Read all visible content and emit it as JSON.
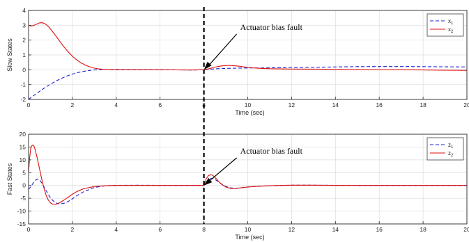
{
  "colors": {
    "series1": "#1f1fd6",
    "series2": "#e01010",
    "grid": "#dcdcdc",
    "fault_line": "#000000"
  },
  "fault_time": 8,
  "chart_data": [
    {
      "type": "line",
      "xlabel": "Time (sec)",
      "ylabel": "Slow States",
      "xlim": [
        0,
        20
      ],
      "ylim": [
        -2,
        4
      ],
      "xticks": [
        "0",
        "2",
        "4",
        "6",
        "8",
        "10",
        "12",
        "14",
        "16",
        "18",
        "20"
      ],
      "yticks": [
        "-2",
        "-1",
        "0",
        "1",
        "2",
        "3",
        "4"
      ],
      "grid": true,
      "legend_position": "top-right",
      "annotation": {
        "text": "Actuator bias fault",
        "x": 8,
        "y": 0
      },
      "series": [
        {
          "name": "x",
          "subscript": "1",
          "style": "dashed",
          "color": "#1f1fd6",
          "x": [
            0,
            0.25,
            0.5,
            0.75,
            1,
            1.25,
            1.5,
            1.75,
            2,
            2.25,
            2.5,
            2.75,
            3,
            3.25,
            3.5,
            4,
            5,
            6,
            7,
            7.5,
            8,
            8.2,
            8.4,
            8.6,
            8.8,
            9,
            9.5,
            10,
            11,
            12,
            13,
            14,
            15,
            16,
            17,
            18,
            19,
            20
          ],
          "y": [
            -2,
            -1.72,
            -1.46,
            -1.2,
            -0.97,
            -0.76,
            -0.58,
            -0.42,
            -0.29,
            -0.19,
            -0.11,
            -0.05,
            -0.01,
            0.0,
            0.02,
            0.02,
            0.01,
            0.0,
            -0.01,
            -0.02,
            0,
            0.03,
            0.05,
            0.07,
            0.08,
            0.09,
            0.11,
            0.12,
            0.13,
            0.15,
            0.17,
            0.19,
            0.21,
            0.22,
            0.22,
            0.21,
            0.2,
            0.19
          ]
        },
        {
          "name": "x",
          "subscript": "2",
          "style": "solid",
          "color": "#e01010",
          "x": [
            0,
            0.1,
            0.2,
            0.3,
            0.4,
            0.5,
            0.6,
            0.7,
            0.8,
            0.9,
            1,
            1.2,
            1.4,
            1.6,
            1.8,
            2,
            2.2,
            2.4,
            2.6,
            2.8,
            3,
            3.2,
            3.5,
            4,
            5,
            6,
            7,
            7.5,
            8,
            8.2,
            8.4,
            8.6,
            8.8,
            9,
            9.2,
            9.4,
            9.6,
            9.8,
            10,
            10.5,
            11,
            12,
            13,
            14,
            15,
            16,
            17,
            18,
            19,
            20
          ],
          "y": [
            3,
            2.95,
            2.97,
            3.03,
            3.1,
            3.16,
            3.17,
            3.14,
            3.05,
            2.92,
            2.75,
            2.37,
            1.97,
            1.57,
            1.22,
            0.91,
            0.66,
            0.46,
            0.31,
            0.19,
            0.11,
            0.06,
            0.02,
            0.0,
            0.0,
            0.0,
            -0.01,
            -0.01,
            0,
            0.06,
            0.14,
            0.21,
            0.26,
            0.29,
            0.29,
            0.27,
            0.24,
            0.2,
            0.16,
            0.1,
            0.07,
            0.05,
            0.04,
            0.03,
            0.02,
            0.01,
            0.0,
            -0.01,
            -0.03,
            -0.04
          ]
        }
      ]
    },
    {
      "type": "line",
      "xlabel": "Time (sec)",
      "ylabel": "Fast States",
      "xlim": [
        0,
        20
      ],
      "ylim": [
        -15,
        20
      ],
      "xticks": [
        "0",
        "2",
        "4",
        "6",
        "8",
        "10",
        "12",
        "14",
        "16",
        "18",
        "20"
      ],
      "yticks": [
        "-15",
        "-10",
        "-5",
        "0",
        "5",
        "10",
        "15",
        "20"
      ],
      "grid": true,
      "legend_position": "top-right",
      "annotation": {
        "text": "Actuator bias fault",
        "x": 8,
        "y": 0
      },
      "series": [
        {
          "name": "z",
          "subscript": "1",
          "style": "dashed",
          "color": "#1f1fd6",
          "x": [
            0,
            0.1,
            0.2,
            0.3,
            0.4,
            0.5,
            0.6,
            0.7,
            0.8,
            0.9,
            1,
            1.1,
            1.2,
            1.3,
            1.4,
            1.6,
            1.8,
            2,
            2.2,
            2.5,
            3,
            3.5,
            4,
            5,
            6,
            7,
            7.8,
            8,
            8.1,
            8.2,
            8.3,
            8.4,
            8.5,
            8.6,
            8.7,
            8.8,
            9,
            9.2,
            9.4,
            9.6,
            9.8,
            10,
            10.5,
            11,
            11.5,
            12,
            13,
            14,
            15,
            16,
            17,
            18,
            19,
            20
          ],
          "y": [
            -1.5,
            -0.5,
            0.8,
            2.0,
            2.5,
            2.2,
            1.0,
            -0.5,
            -2.0,
            -3.5,
            -4.8,
            -5.8,
            -6.5,
            -7.0,
            -7.2,
            -7.0,
            -6.3,
            -5.2,
            -4.0,
            -2.5,
            -0.8,
            -0.1,
            0.05,
            0.1,
            0.05,
            0.0,
            0.05,
            0,
            1.2,
            2.2,
            2.7,
            2.8,
            2.4,
            1.8,
            1.2,
            0.6,
            -0.4,
            -0.9,
            -1.1,
            -1.0,
            -0.8,
            -0.6,
            -0.3,
            -0.1,
            0.0,
            0.1,
            0.1,
            0.05,
            0.02,
            0.0,
            0.0,
            0.0,
            0.0,
            0.0
          ]
        },
        {
          "name": "z",
          "subscript": "2",
          "style": "solid",
          "color": "#e01010",
          "x": [
            0,
            0.05,
            0.1,
            0.15,
            0.2,
            0.25,
            0.3,
            0.4,
            0.5,
            0.6,
            0.7,
            0.8,
            0.9,
            1,
            1.1,
            1.2,
            1.3,
            1.4,
            1.6,
            1.8,
            2,
            2.2,
            2.5,
            3,
            3.5,
            4,
            5,
            6,
            7,
            7.8,
            8,
            8.1,
            8.2,
            8.3,
            8.4,
            8.5,
            8.6,
            8.7,
            8.8,
            9,
            9.2,
            9.4,
            9.6,
            9.8,
            10,
            10.5,
            11,
            11.5,
            12,
            13,
            14,
            15,
            16,
            17,
            18,
            19,
            20
          ],
          "y": [
            5.0,
            11.0,
            14.5,
            15.5,
            15.8,
            15.3,
            14.0,
            10.5,
            6.5,
            2.5,
            -1.0,
            -3.8,
            -5.7,
            -6.8,
            -7.3,
            -7.4,
            -7.2,
            -6.8,
            -5.8,
            -4.6,
            -3.4,
            -2.4,
            -1.3,
            -0.4,
            -0.1,
            0.0,
            0.0,
            0.0,
            0.0,
            0.0,
            0,
            2.5,
            3.8,
            4.2,
            4.0,
            3.2,
            2.3,
            1.3,
            0.5,
            -0.6,
            -1.1,
            -1.2,
            -1.0,
            -0.8,
            -0.6,
            -0.3,
            -0.1,
            0.0,
            0.1,
            0.1,
            0.05,
            0.02,
            0.0,
            0.0,
            0.0,
            0.0,
            0.0
          ]
        }
      ]
    }
  ]
}
